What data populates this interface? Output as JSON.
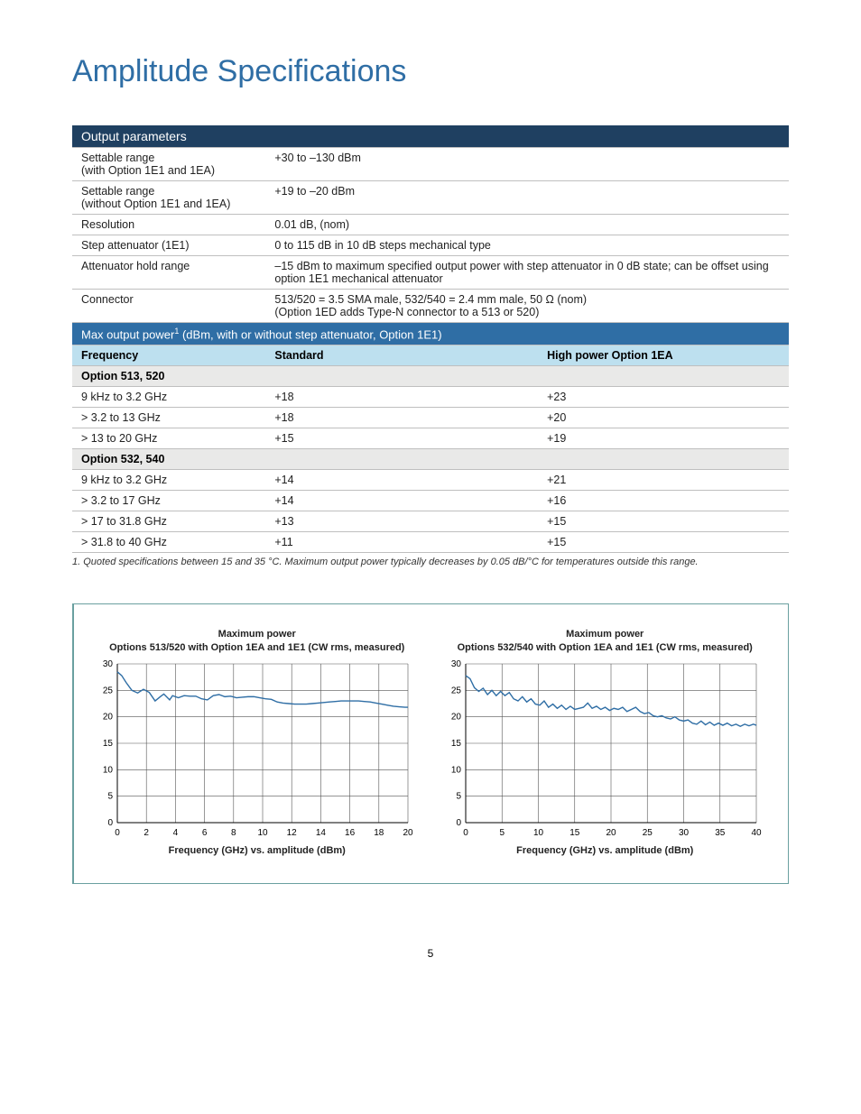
{
  "page_title": "Amplitude Specifications",
  "page_number": "5",
  "table1": {
    "header": "Output parameters",
    "rows": [
      {
        "label": "Settable range\n(with Option 1E1 and 1EA)",
        "value": "+30 to –130 dBm"
      },
      {
        "label": "Settable range\n(without Option 1E1 and 1EA)",
        "value": "+19 to –20 dBm"
      },
      {
        "label": "Resolution",
        "value": "0.01 dB, (nom)"
      },
      {
        "label": "Step attenuator (1E1)",
        "value": "0 to 115 dB in 10 dB steps mechanical type"
      },
      {
        "label": "Attenuator hold range",
        "value": "–15 dBm to maximum specified output power with step attenuator in 0 dB state; can be offset using option 1E1 mechanical attenuator"
      },
      {
        "label": "Connector",
        "value": "513/520 = 3.5 SMA male, 532/540 = 2.4 mm male, 50 Ω (nom)\n(Option 1ED adds Type-N connector to a 513 or 520)"
      }
    ]
  },
  "table2": {
    "header": "Max output power 1 (dBm, with or without step attenuator, Option 1E1)",
    "header_plain": "Max output power",
    "header_sup": "1",
    "header_tail": " (dBm, with or without step attenuator, Option 1E1)",
    "col_headers": [
      "Frequency",
      "Standard",
      "High power Option 1EA"
    ],
    "groups": [
      {
        "name": "Option 513, 520",
        "rows": [
          {
            "freq": "9 kHz to 3.2 GHz",
            "std": "+18",
            "hp": "+23"
          },
          {
            "freq": "> 3.2 to 13 GHz",
            "std": "+18",
            "hp": "+20"
          },
          {
            "freq": "> 13 to 20 GHz",
            "std": "+15",
            "hp": "+19"
          }
        ]
      },
      {
        "name": "Option 532, 540",
        "rows": [
          {
            "freq": "9 kHz to 3.2 GHz",
            "std": "+14",
            "hp": "+21"
          },
          {
            "freq": "> 3.2 to 17 GHz",
            "std": "+14",
            "hp": "+16"
          },
          {
            "freq": "> 17 to 31.8 GHz",
            "std": "+13",
            "hp": "+15"
          },
          {
            "freq": "> 31.8 to 40 GHz",
            "std": "+11",
            "hp": "+15"
          }
        ]
      }
    ]
  },
  "footnote": "1.   Quoted specifications between 15 and 35 °C. Maximum output power typically decreases by 0.05 dB/°C for temperatures outside this range.",
  "chart_common": {
    "ylim": [
      0,
      30
    ],
    "ytick_step": 5,
    "grid_color": "#555555",
    "line_color": "#2f6ea5",
    "line_width": 1.4,
    "title_fontsize": 11,
    "tick_fontsize": 10,
    "axis_label": "Frequency (GHz) vs. amplitude (dBm)"
  },
  "chart_left": {
    "title1": "Maximum power",
    "title2": "Options 513/520 with Option 1EA and 1E1 (CW rms, measured)",
    "xlim": [
      0,
      20
    ],
    "xtick_step": 2,
    "data": [
      [
        0.0,
        28.5
      ],
      [
        0.3,
        27.8
      ],
      [
        0.6,
        26.5
      ],
      [
        1.0,
        25.0
      ],
      [
        1.4,
        24.5
      ],
      [
        1.8,
        25.2
      ],
      [
        2.2,
        24.6
      ],
      [
        2.6,
        23.0
      ],
      [
        3.0,
        23.9
      ],
      [
        3.2,
        24.3
      ],
      [
        3.6,
        23.2
      ],
      [
        3.8,
        24.0
      ],
      [
        4.2,
        23.6
      ],
      [
        4.6,
        24.0
      ],
      [
        5.0,
        23.9
      ],
      [
        5.4,
        23.9
      ],
      [
        5.8,
        23.4
      ],
      [
        6.2,
        23.2
      ],
      [
        6.6,
        24.0
      ],
      [
        7.0,
        24.2
      ],
      [
        7.4,
        23.8
      ],
      [
        7.8,
        23.9
      ],
      [
        8.2,
        23.6
      ],
      [
        8.6,
        23.7
      ],
      [
        9.0,
        23.8
      ],
      [
        9.4,
        23.8
      ],
      [
        9.8,
        23.6
      ],
      [
        10.2,
        23.4
      ],
      [
        10.6,
        23.3
      ],
      [
        11.0,
        22.8
      ],
      [
        11.4,
        22.6
      ],
      [
        11.8,
        22.5
      ],
      [
        12.2,
        22.4
      ],
      [
        12.6,
        22.4
      ],
      [
        13.0,
        22.4
      ],
      [
        13.4,
        22.5
      ],
      [
        13.8,
        22.6
      ],
      [
        14.2,
        22.7
      ],
      [
        14.6,
        22.8
      ],
      [
        15.0,
        22.9
      ],
      [
        15.4,
        23.0
      ],
      [
        15.8,
        23.0
      ],
      [
        16.2,
        23.0
      ],
      [
        16.6,
        23.0
      ],
      [
        17.0,
        22.9
      ],
      [
        17.4,
        22.8
      ],
      [
        17.8,
        22.6
      ],
      [
        18.2,
        22.4
      ],
      [
        18.6,
        22.2
      ],
      [
        19.0,
        22.0
      ],
      [
        19.4,
        21.9
      ],
      [
        19.8,
        21.8
      ],
      [
        20.0,
        21.8
      ]
    ]
  },
  "chart_right": {
    "title1": "Maximum power",
    "title2": "Options 532/540 with Option 1EA and 1E1 (CW rms, measured)",
    "xlim": [
      0,
      40
    ],
    "xtick_step": 5,
    "data": [
      [
        0.0,
        27.8
      ],
      [
        0.6,
        27.2
      ],
      [
        1.2,
        25.5
      ],
      [
        1.8,
        24.8
      ],
      [
        2.4,
        25.4
      ],
      [
        3.0,
        24.2
      ],
      [
        3.6,
        25.0
      ],
      [
        4.2,
        24.0
      ],
      [
        4.8,
        24.8
      ],
      [
        5.4,
        24.0
      ],
      [
        6.0,
        24.6
      ],
      [
        6.6,
        23.4
      ],
      [
        7.2,
        23.0
      ],
      [
        7.8,
        23.8
      ],
      [
        8.4,
        22.8
      ],
      [
        9.0,
        23.4
      ],
      [
        9.6,
        22.4
      ],
      [
        10.2,
        22.2
      ],
      [
        10.8,
        23.0
      ],
      [
        11.4,
        21.8
      ],
      [
        12.0,
        22.4
      ],
      [
        12.6,
        21.6
      ],
      [
        13.2,
        22.2
      ],
      [
        13.8,
        21.4
      ],
      [
        14.4,
        22.0
      ],
      [
        15.0,
        21.4
      ],
      [
        15.6,
        21.6
      ],
      [
        16.2,
        21.8
      ],
      [
        16.8,
        22.6
      ],
      [
        17.4,
        21.6
      ],
      [
        18.0,
        22.0
      ],
      [
        18.6,
        21.4
      ],
      [
        19.2,
        21.8
      ],
      [
        19.8,
        21.2
      ],
      [
        20.4,
        21.6
      ],
      [
        21.0,
        21.4
      ],
      [
        21.6,
        21.8
      ],
      [
        22.2,
        21.0
      ],
      [
        22.8,
        21.4
      ],
      [
        23.4,
        21.8
      ],
      [
        24.0,
        21.0
      ],
      [
        24.6,
        20.6
      ],
      [
        25.2,
        20.8
      ],
      [
        25.8,
        20.2
      ],
      [
        26.4,
        20.0
      ],
      [
        27.0,
        20.2
      ],
      [
        27.6,
        19.8
      ],
      [
        28.2,
        19.6
      ],
      [
        28.8,
        20.0
      ],
      [
        29.4,
        19.4
      ],
      [
        30.0,
        19.2
      ],
      [
        30.6,
        19.4
      ],
      [
        31.2,
        18.8
      ],
      [
        31.8,
        18.6
      ],
      [
        32.4,
        19.2
      ],
      [
        33.0,
        18.5
      ],
      [
        33.6,
        19.0
      ],
      [
        34.2,
        18.4
      ],
      [
        34.8,
        18.8
      ],
      [
        35.4,
        18.4
      ],
      [
        36.0,
        18.8
      ],
      [
        36.6,
        18.3
      ],
      [
        37.2,
        18.6
      ],
      [
        37.8,
        18.2
      ],
      [
        38.4,
        18.6
      ],
      [
        39.0,
        18.3
      ],
      [
        39.6,
        18.6
      ],
      [
        40.0,
        18.4
      ]
    ]
  }
}
